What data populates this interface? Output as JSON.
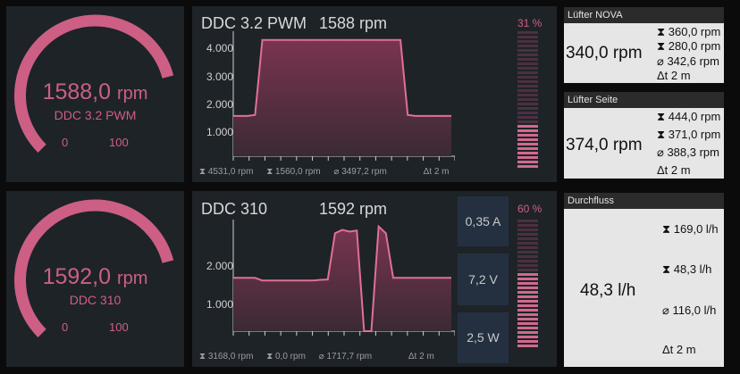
{
  "gauge1": {
    "value": "1588,0",
    "unit": "rpm",
    "label": "DDC 3.2 PWM",
    "min": "0",
    "max": "100",
    "fill_fraction": 0.78
  },
  "gauge2": {
    "value": "1592,0",
    "unit": "rpm",
    "label": "DDC 310",
    "min": "0",
    "max": "100",
    "fill_fraction": 0.78
  },
  "chart1": {
    "title": "DDC 3.2 PWM",
    "reading": "1588 rpm",
    "percent": "31 %",
    "level_fraction": 0.31,
    "yticks": [
      "4.000",
      "3.000",
      "2.000",
      "1.000"
    ],
    "stats": {
      "max": "4531,0 rpm",
      "min": "1560,0 rpm",
      "avg": "3497,2 rpm",
      "span": "2 m"
    },
    "chart_data": {
      "type": "area",
      "ylim": [
        0,
        4700
      ],
      "x": [
        0,
        1,
        2,
        3,
        4,
        5,
        6,
        7,
        8,
        9,
        10,
        11,
        12,
        13,
        14,
        15,
        16,
        17,
        18,
        19,
        20,
        21,
        22,
        23,
        24,
        25,
        26,
        27,
        28,
        29,
        30
      ],
      "values": [
        1560,
        1560,
        1560,
        1600,
        4500,
        4500,
        4500,
        4500,
        4500,
        4500,
        4500,
        4500,
        4500,
        4500,
        4500,
        4500,
        4500,
        4500,
        4500,
        4500,
        4500,
        4500,
        4500,
        4500,
        1600,
        1560,
        1560,
        1560,
        1560,
        1560,
        1560
      ]
    }
  },
  "chart2": {
    "title": "DDC 310",
    "reading": "1592 rpm",
    "percent": "60 %",
    "level_fraction": 0.6,
    "yticks": [
      "2.000",
      "1.000"
    ],
    "stats": {
      "max": "3168,0 rpm",
      "min": "0,0 rpm",
      "avg": "1717,7 rpm",
      "span": "2 m"
    },
    "metrics": [
      "0,35 A",
      "7,2 V",
      "2,5 W"
    ],
    "chart_data": {
      "type": "area",
      "ylim": [
        0,
        3200
      ],
      "x": [
        0,
        1,
        2,
        3,
        4,
        5,
        6,
        7,
        8,
        9,
        10,
        11,
        12,
        13,
        14,
        15,
        16,
        17,
        18,
        19,
        20,
        21,
        22,
        23,
        24,
        25,
        26,
        27,
        28,
        29,
        30
      ],
      "values": [
        1580,
        1580,
        1580,
        1580,
        1500,
        1500,
        1500,
        1500,
        1500,
        1500,
        1500,
        1500,
        1520,
        1530,
        2900,
        3000,
        2950,
        2980,
        0,
        0,
        3100,
        2900,
        1580,
        1580,
        1580,
        1580,
        1580,
        1580,
        1580,
        1580,
        1580
      ]
    }
  },
  "nova": {
    "title": "Lüfter NOVA",
    "value": "340,0 rpm",
    "max": "360,0 rpm",
    "min": "280,0 rpm",
    "avg": "342,6 rpm",
    "span": "2 m"
  },
  "seite": {
    "title": "Lüfter Seite",
    "value": "374,0 rpm",
    "max": "444,0 rpm",
    "min": "371,0 rpm",
    "avg": "388,3 rpm",
    "span": "2 m"
  },
  "flow": {
    "title": "Durchfluss",
    "value": "48,3 l/h",
    "max": "169,0 l/h",
    "min": "48,3 l/h",
    "avg": "116,0 l/h",
    "span": "2 m"
  },
  "colors": {
    "accent": "#cd5f84",
    "panel": "#1e2328",
    "card": "#e6e6e6"
  },
  "icons": {
    "max": "hourglass-up-icon",
    "min": "hourglass-down-icon",
    "avg": "average-icon",
    "span": "delta-time-icon"
  }
}
